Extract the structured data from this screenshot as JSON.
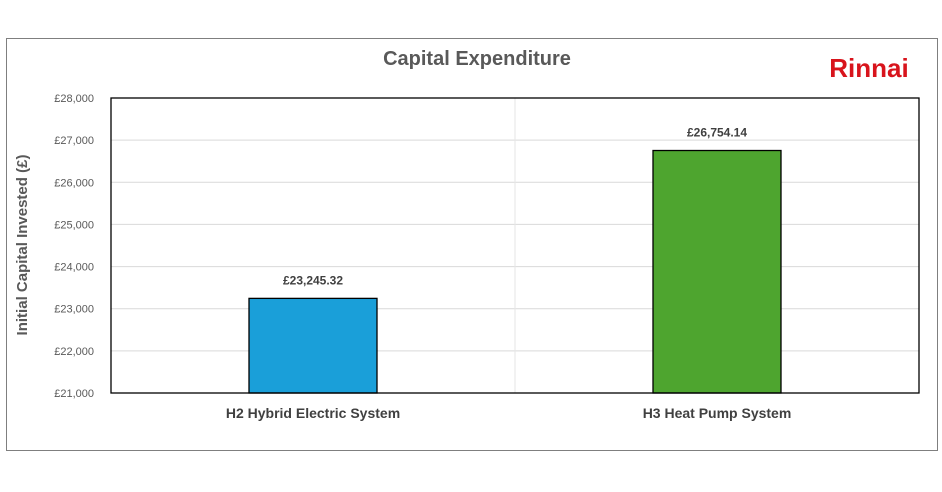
{
  "brand": {
    "logo_text": "Rinnai",
    "color": "#d8141c"
  },
  "chart_data": {
    "type": "bar",
    "title": "Capital Expenditure",
    "xlabel": "",
    "ylabel": "Initial Capital Invested (£)",
    "categories": [
      "H2 Hybrid Electric System",
      "H3 Heat Pump System"
    ],
    "values": [
      23245.32,
      26754.14
    ],
    "data_labels": [
      "£23,245.32",
      "£26,754.14"
    ],
    "bar_colors": [
      "#1a9fd9",
      "#4ea52f"
    ],
    "ylim": [
      21000,
      28000
    ],
    "yticks": [
      {
        "value": 21000,
        "label": "£21,000"
      },
      {
        "value": 22000,
        "label": "£22,000"
      },
      {
        "value": 23000,
        "label": "£23,000"
      },
      {
        "value": 24000,
        "label": "£24,000"
      },
      {
        "value": 25000,
        "label": "£25,000"
      },
      {
        "value": 26000,
        "label": "£26,000"
      },
      {
        "value": 27000,
        "label": "£27,000"
      },
      {
        "value": 28000,
        "label": "£28,000"
      }
    ],
    "grid": true,
    "legend": "none"
  }
}
